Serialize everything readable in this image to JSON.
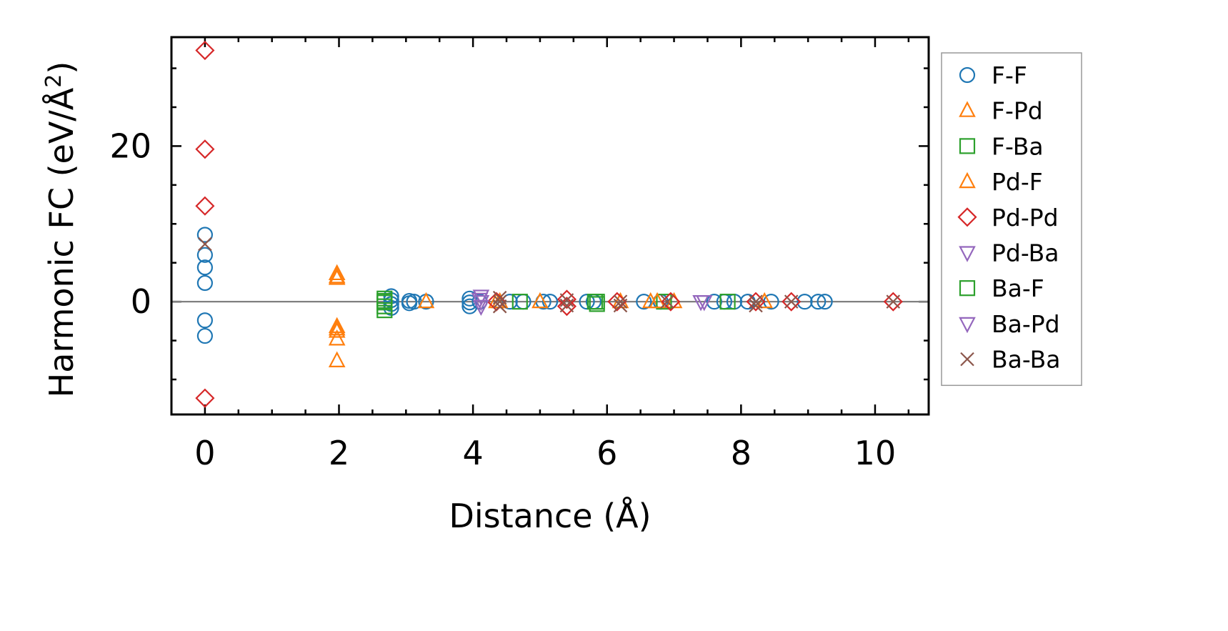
{
  "chart_data": {
    "type": "scatter",
    "xlabel": "Distance (Å)",
    "ylabel_main": "Harmonic FC (eV/Å",
    "ylabel_sup": "2",
    "ylabel_end": ")",
    "xlim": [
      -0.5,
      10.8
    ],
    "ylim": [
      -14.5,
      34
    ],
    "x_ticks": [
      0,
      2,
      4,
      6,
      8,
      10
    ],
    "x_tick_labels": [
      "0",
      "2",
      "4",
      "6",
      "8",
      "10"
    ],
    "y_ticks": [
      0,
      20
    ],
    "y_tick_labels": [
      "0",
      "20"
    ],
    "zero_line": true,
    "grid": false,
    "legend_position": "right-outside",
    "series": [
      {
        "name": "F-F",
        "marker": "circle",
        "color": "#1f77b4",
        "points": [
          [
            0,
            8.6
          ],
          [
            0,
            6.0
          ],
          [
            0,
            4.4
          ],
          [
            0,
            2.4
          ],
          [
            0,
            -2.4
          ],
          [
            0,
            -4.4
          ],
          [
            2.78,
            0.7
          ],
          [
            2.78,
            0.2
          ],
          [
            2.78,
            -0.3
          ],
          [
            2.78,
            -0.8
          ],
          [
            3.05,
            0.1
          ],
          [
            3.05,
            -0.2
          ],
          [
            3.12,
            0
          ],
          [
            3.3,
            0
          ],
          [
            3.95,
            0.4
          ],
          [
            3.95,
            -0.1
          ],
          [
            3.95,
            -0.6
          ],
          [
            4.1,
            0
          ],
          [
            4.55,
            0
          ],
          [
            4.75,
            0
          ],
          [
            5.05,
            0
          ],
          [
            5.15,
            0
          ],
          [
            5.7,
            0
          ],
          [
            5.8,
            0
          ],
          [
            6.55,
            0
          ],
          [
            6.8,
            0
          ],
          [
            7.6,
            0
          ],
          [
            7.75,
            0
          ],
          [
            7.9,
            0
          ],
          [
            8.1,
            0
          ],
          [
            8.45,
            0
          ],
          [
            8.95,
            0
          ],
          [
            9.15,
            0
          ],
          [
            9.25,
            0
          ]
        ]
      },
      {
        "name": "F-Pd",
        "marker": "triangle-up",
        "color": "#ff7f0e",
        "points": [
          [
            1.97,
            3.6
          ],
          [
            1.97,
            3.0
          ],
          [
            1.97,
            -3.2
          ],
          [
            1.97,
            -3.8
          ],
          [
            1.97,
            -4.8
          ],
          [
            1.97,
            -7.6
          ],
          [
            3.3,
            0
          ],
          [
            4.4,
            0
          ],
          [
            5.0,
            0
          ],
          [
            6.2,
            0
          ],
          [
            6.65,
            0
          ],
          [
            7.0,
            0
          ],
          [
            8.35,
            0
          ]
        ]
      },
      {
        "name": "F-Ba",
        "marker": "square",
        "color": "#2ca02c",
        "points": [
          [
            2.68,
            0.4
          ],
          [
            2.68,
            -0.1
          ],
          [
            2.68,
            -0.6
          ],
          [
            2.68,
            -1.1
          ],
          [
            4.7,
            0
          ],
          [
            5.85,
            0
          ],
          [
            5.85,
            -0.3
          ],
          [
            6.85,
            0
          ],
          [
            7.8,
            0
          ]
        ]
      },
      {
        "name": "Pd-F",
        "marker": "triangle-up",
        "color": "#ff7f0e",
        "points": [
          [
            1.97,
            3.2
          ],
          [
            1.97,
            -3.5
          ],
          [
            4.35,
            0
          ],
          [
            6.75,
            0
          ]
        ]
      },
      {
        "name": "Pd-Pd",
        "marker": "diamond",
        "color": "#d62728",
        "points": [
          [
            0,
            32.3
          ],
          [
            0,
            19.6
          ],
          [
            0,
            12.3
          ],
          [
            0,
            -12.4
          ],
          [
            4.35,
            0
          ],
          [
            5.4,
            0.3
          ],
          [
            5.4,
            -0.6
          ],
          [
            6.15,
            0
          ],
          [
            6.95,
            0
          ],
          [
            8.22,
            0
          ],
          [
            8.75,
            0
          ],
          [
            10.27,
            0
          ]
        ]
      },
      {
        "name": "Pd-Ba",
        "marker": "triangle-down",
        "color": "#9467bd",
        "points": [
          [
            4.12,
            0.7
          ],
          [
            4.12,
            0
          ],
          [
            4.12,
            -0.6
          ],
          [
            7.45,
            0
          ]
        ]
      },
      {
        "name": "Ba-F",
        "marker": "square",
        "color": "#2ca02c",
        "points": [
          [
            2.68,
            0.1
          ],
          [
            5.82,
            0
          ]
        ]
      },
      {
        "name": "Ba-Pd",
        "marker": "triangle-down",
        "color": "#9467bd",
        "points": [
          [
            4.1,
            0.3
          ],
          [
            7.4,
            0
          ]
        ]
      },
      {
        "name": "Ba-Ba",
        "marker": "x",
        "color": "#8c564b",
        "points": [
          [
            0,
            7.4
          ],
          [
            4.4,
            0.5
          ],
          [
            4.4,
            0
          ],
          [
            4.4,
            -0.6
          ],
          [
            5.4,
            0.2
          ],
          [
            5.4,
            -0.5
          ],
          [
            6.2,
            0
          ],
          [
            6.2,
            -0.5
          ],
          [
            6.9,
            0
          ],
          [
            8.22,
            0
          ],
          [
            8.22,
            -0.5
          ],
          [
            8.75,
            0
          ],
          [
            10.27,
            0
          ]
        ]
      }
    ]
  }
}
